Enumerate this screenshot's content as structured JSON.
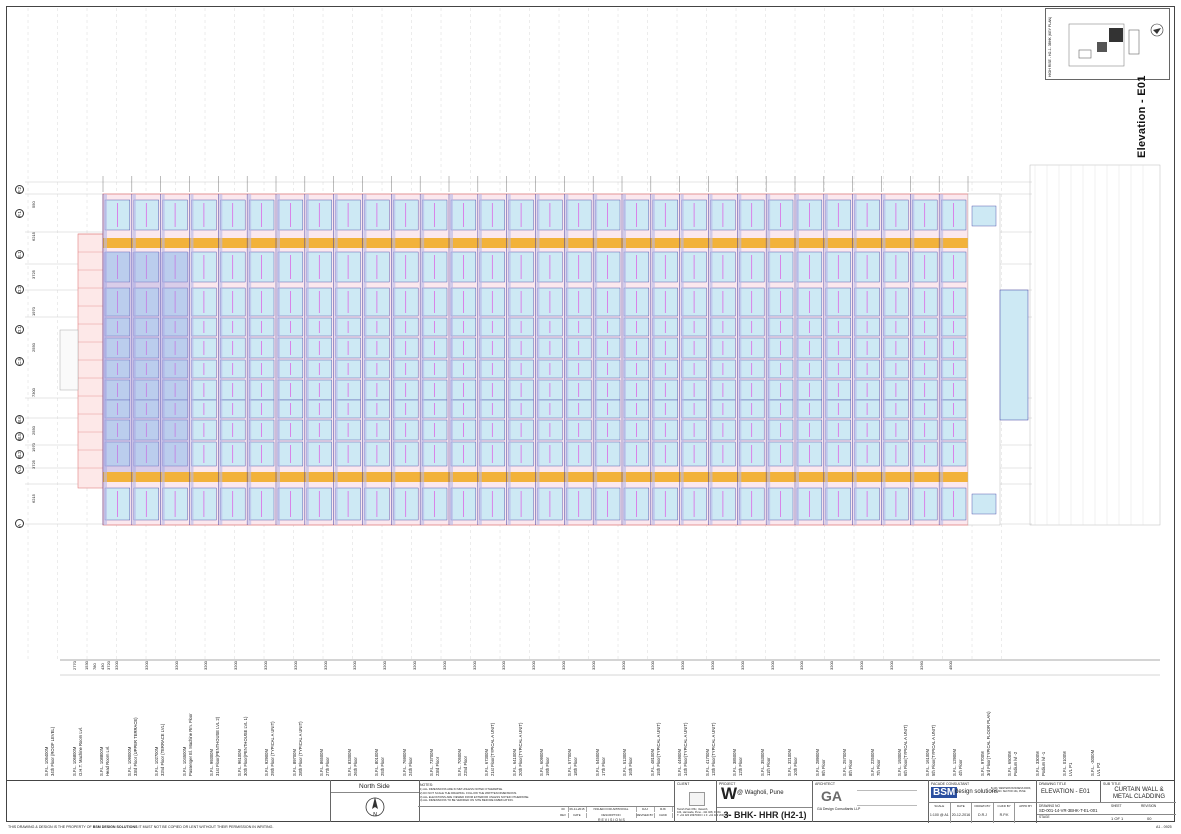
{
  "sheet": {
    "title": "Elevation - E01",
    "key_plan_label": "HIGH RISE - H2-1- 3BHK (KEY PLAN)"
  },
  "grid_rows": [
    {
      "label": "F.2",
      "dim": "550"
    },
    {
      "label": "F.1",
      "dim": "6215"
    },
    {
      "label": "E.1",
      "dim": "3725"
    },
    {
      "label": "D.2",
      "dim": "1970"
    },
    {
      "label": "D.1",
      "dim": "2550"
    },
    {
      "label": "C.5",
      "dim": "7300"
    },
    {
      "label": "B.6",
      "dim": "2550"
    },
    {
      "label": "B.5",
      "dim": "1970"
    },
    {
      "label": "B.2",
      "dim": "3725"
    },
    {
      "label": "A.3",
      "dim": "6215"
    },
    {
      "label": "A",
      "dim": ""
    }
  ],
  "bottom_dims": [
    "2770",
    "1530",
    "780",
    "430",
    "3720",
    "3200",
    "3200",
    "3200",
    "3200",
    "3200",
    "3200",
    "3200",
    "3200",
    "3200",
    "3200",
    "3200",
    "3200",
    "3200",
    "3200",
    "3200",
    "3200",
    "3200",
    "3200",
    "3200",
    "3200",
    "3200",
    "3200",
    "3200",
    "3200",
    "3200",
    "3200",
    "3200",
    "3260",
    "4500"
  ],
  "levels": [
    [
      "S.F.L. 105400M",
      "34th Floor (ROOF LEVEL)"
    ],
    [
      "S.F.L. 106800M",
      "O.H.T. Machine Room Lvl."
    ],
    [
      "S.F.L. 108800M",
      "Head Room Lvl."
    ],
    [
      "S.F.L. 109000M",
      "33rd Floor (UPPER TERRACE)"
    ],
    [
      "S.F.L. 102700M",
      "32nd Floor (TERRACE LVL)"
    ],
    [
      "S.F.L. 104500M",
      "Passenger El. Machine Rm. Floor"
    ],
    [
      "S.F.L. 99300M",
      "31st Floor(PENTHOUSE LVL 2)"
    ],
    [
      "S.F.L. 96100M",
      "30th Floor(PENTHOUSE LVL 1)"
    ],
    [
      "S.F.L. 92900M",
      "29th Floor (TYPICAL A UNIT)"
    ],
    [
      "S.F.L. 89700M",
      "28th Floor (TYPICAL A UNIT)"
    ],
    [
      "S.F.L. 86500M",
      "27th Floor"
    ],
    [
      "S.F.L. 83300M",
      "26th Floor"
    ],
    [
      "S.F.L. 80100M",
      "25th Floor"
    ],
    [
      "S.F.L. 76900M",
      "24th Floor"
    ],
    [
      "S.F.L. 73700M",
      "23rd Floor"
    ],
    [
      "S.F.L. 70500M",
      "22nd Floor"
    ],
    [
      "S.F.L. 67300M",
      "21st Floor(TYPICAL A UNIT)"
    ],
    [
      "S.F.L. 64100M",
      "20th Floor(TYPICAL A UNIT)"
    ],
    [
      "S.F.L. 60900M",
      "19th Floor"
    ],
    [
      "S.F.L. 57700M",
      "18th Floor"
    ],
    [
      "S.F.L. 54500M",
      "17th Floor"
    ],
    [
      "S.F.L. 51300M",
      "16th Floor"
    ],
    [
      "S.F.L. 48100M",
      "15th Floor(TYPICAL A UNIT)"
    ],
    [
      "S.F.L. 44900M",
      "14th Floor(TYPICAL A UNIT)"
    ],
    [
      "S.F.L. 41700M",
      "13th Floor(TYPICAL A UNIT)"
    ],
    [
      "S.F.L. 38500M",
      "12th Floor"
    ],
    [
      "S.F.L. 35300M",
      "11th Floor"
    ],
    [
      "S.F.L. 32100M",
      "10th Floor"
    ],
    [
      "S.F.L. 28900M",
      "9th Floor"
    ],
    [
      "S.F.L. 25700M",
      "8th Floor"
    ],
    [
      "S.F.L. 22500M",
      "7th Floor"
    ],
    [
      "S.F.L. 19300M",
      "6th Floor(TYPICAL A UNIT)"
    ],
    [
      "S.F.L. 16100M",
      "5th Floor(TYPICAL A UNIT)"
    ],
    [
      "S.F.L. 12900M",
      "4th Floor"
    ],
    [
      "S.F.L. 9700M",
      "3rd Floor(TYPICAL FLOOR PLAN)"
    ],
    [
      "S.F.L. 6500M",
      "Podium lvl -2"
    ],
    [
      "S.F.L. 3300M",
      "Podium lvl -1"
    ],
    [
      "S.F.L. 0100M",
      "LVL P1"
    ],
    [
      "S.F.L. -3000M",
      "LVL P2"
    ]
  ],
  "title_block": {
    "view_label": "North Side",
    "notes_title": "NOTES:",
    "notes": [
      "1) ALL DIMENSIONS ARE IN MM UNLESS NOTED OTHERWISE.",
      "2) DO NOT SCALE THE DRAWING. FOLLOW THE WRITTEN DIMENSIONS.",
      "3) ALL ELEVATIONS ARE VIEWED FROM EXTERIOR UNLESS NOTED OTHERWISE.",
      "4) ALL DIMENSIONS TO BE VERIFIED ON SITE BEFORE FABRICATION."
    ],
    "revisions_label": "R E V I S I O N S",
    "rev_row": [
      "00",
      "06-11-2015",
      "ISSUED FOR APPROVAL",
      "DAJ",
      "RJK"
    ],
    "rev_cols": [
      "REV",
      "DATE",
      "DESCRIPTION",
      "REVISED BY",
      "CHKD"
    ],
    "client_label": "CLIENT",
    "client_addr": [
      "Tanish Park Offic, Vasanth,",
      "104, Harmada, Pune - 411 028, INDIA",
      "T: +91 020 26970000 / 1 F: +91 020 26970003"
    ],
    "project_label": "PROJECT",
    "project_logo": "W",
    "project_name": "@ Wagholi, Pune",
    "project_code": "3- BHK- HHR (H2-1)",
    "architect_label": "ARCHITECT",
    "architect_logo": "GA",
    "architect_name": "GA Design Consultants LLP",
    "facade_label": "FACADE CONSULTANT",
    "facade_logo": "BSM",
    "facade_name": "design solutions",
    "facade_addr": "B-103, WESTERN BUSINESS PARK, PLOT NO. SECTOR 16A, PUNE",
    "meta": [
      {
        "cap": "SCALE",
        "val": "1:100 @ A1"
      },
      {
        "cap": "DATE",
        "val": "20-12-2016"
      },
      {
        "cap": "DRAWN BY",
        "val": "D.R.J"
      },
      {
        "cap": "CHKD BY",
        "val": "R.P.K"
      },
      {
        "cap": "APPD BY",
        "val": ""
      }
    ],
    "drawing_title_label": "DRAWING TITLE",
    "drawing_title": "ELEVATION - E01",
    "sub_title_label": "SUB TITLE",
    "sub_title": "CURTAIN WALL & METAL CLADDING",
    "drawing_no_label": "DRAWING NO",
    "drawing_no": "SD-001-14-VR-3BHK-T-EL-001",
    "stage": "STAGE",
    "sheet_label": "SHEET",
    "sheet_no": "1 OF 1",
    "revision_label": "REVISION",
    "revision_no": "00",
    "size": "A1 - 0925"
  },
  "footer": {
    "ownership": "THIS DRAWING & DESIGN IS THE PROPERTY OF",
    "owner": "BSM DESIGN SOLUTIONS",
    "warning": "IT MUST NOT BE COPIED OR LENT WITHOUT THEIR PERMISSION IN WRITING."
  },
  "north_symbol": "N",
  "colors": {
    "glass": "#cde9f4",
    "mullion": "#3a3aa0",
    "spandrel": "#b8b8e8",
    "slab": "#f2b23a",
    "grid": "#e08080",
    "label": "#e040e0"
  }
}
